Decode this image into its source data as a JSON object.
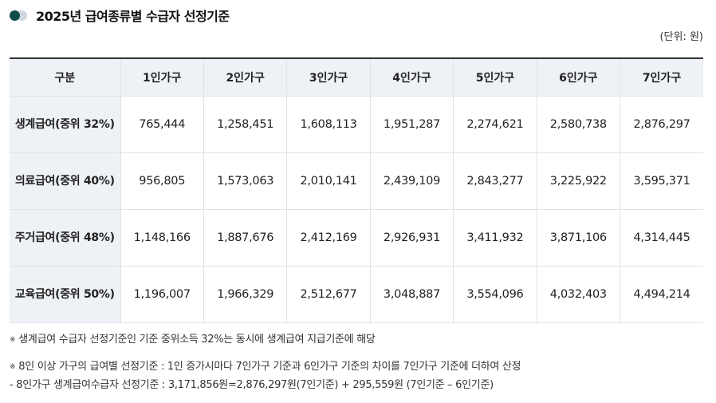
{
  "header": {
    "title": "2025년 급여종류별 수급자 선정기준",
    "unit": "(단위: 원)"
  },
  "table": {
    "columns": [
      "구분",
      "1인가구",
      "2인가구",
      "3인가구",
      "4인가구",
      "5인가구",
      "6인가구",
      "7인가구"
    ],
    "rows": [
      {
        "label": "생계급여(중위 32%)",
        "values": [
          "765,444",
          "1,258,451",
          "1,608,113",
          "1,951,287",
          "2,274,621",
          "2,580,738",
          "2,876,297"
        ]
      },
      {
        "label": "의료급여(중위 40%)",
        "values": [
          "956,805",
          "1,573,063",
          "2,010,141",
          "2,439,109",
          "2,843,277",
          "3,225,922",
          "3,595,371"
        ]
      },
      {
        "label": "주거급여(중위 48%)",
        "values": [
          "1,148,166",
          "1,887,676",
          "2,412,169",
          "2,926,931",
          "3,411,932",
          "3,871,106",
          "4,314,445"
        ]
      },
      {
        "label": "교육급여(중위 50%)",
        "values": [
          "1,196,007",
          "1,966,329",
          "2,512,677",
          "3,048,887",
          "3,554,096",
          "4,032,403",
          "4,494,214"
        ]
      }
    ]
  },
  "notes": {
    "mark": "※",
    "note1": "생계급여 수급자 선정기준인 기준 중위소득 32%는 동시에 생계급여 지급기준에 해당",
    "note2": "8인 이상 가구의 급여별 선정기준 : 1인 증가시마다 7인가구 기준과 6인가구 기준의 차이를 7인가구 기준에 더하여 산정",
    "note3": "- 8인가구 생계급여수급자 선정기준 : 3,171,856원=2,876,297원(7인기준) + 295,559원 (7인기준 – 6인기준)"
  }
}
